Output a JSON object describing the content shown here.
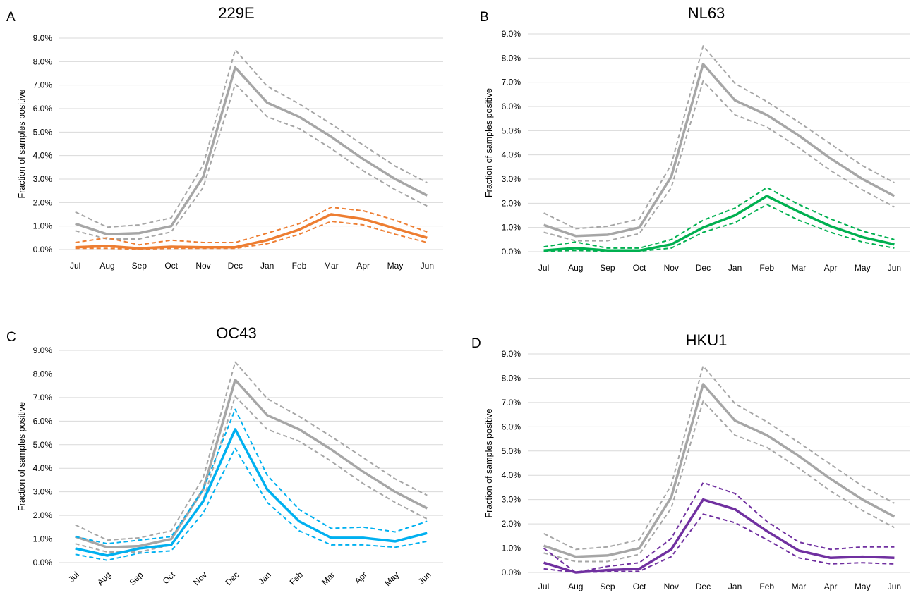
{
  "colors": {
    "overall": "#a6a6a6",
    "229E": "#ed7d31",
    "NL63": "#00b050",
    "OC43": "#00b0f0",
    "HKU1": "#7030a0"
  },
  "chart_data": [
    {
      "panel": "A",
      "type": "line",
      "title": "229E",
      "ylabel": "Fraction of samples positive",
      "xlabel": "",
      "categories": [
        "Jul",
        "Aug",
        "Sep",
        "Oct",
        "Nov",
        "Dec",
        "Jan",
        "Feb",
        "Mar",
        "Apr",
        "May",
        "Jun"
      ],
      "yticks": [
        "0.0%",
        "1.0%",
        "2.0%",
        "3.0%",
        "4.0%",
        "5.0%",
        "6.0%",
        "7.0%",
        "8.0%",
        "9.0%"
      ],
      "ylim": [
        0,
        9
      ],
      "grid": true,
      "xtick_rotated": false,
      "series": [
        {
          "role": "overall",
          "style": "solid",
          "values": [
            1.1,
            0.65,
            0.7,
            1.0,
            3.1,
            7.75,
            6.25,
            5.65,
            4.8,
            3.85,
            3.0,
            2.3
          ]
        },
        {
          "role": "overall-upper",
          "style": "dashed",
          "values": [
            1.6,
            0.95,
            1.05,
            1.35,
            3.6,
            8.5,
            6.95,
            6.2,
            5.35,
            4.45,
            3.55,
            2.85
          ]
        },
        {
          "role": "overall-lower",
          "style": "dashed",
          "values": [
            0.8,
            0.45,
            0.45,
            0.75,
            2.65,
            7.05,
            5.65,
            5.15,
            4.3,
            3.35,
            2.55,
            1.85
          ]
        },
        {
          "role": "virus",
          "style": "solid",
          "values": [
            0.1,
            0.15,
            0.05,
            0.12,
            0.1,
            0.1,
            0.4,
            0.85,
            1.5,
            1.3,
            0.9,
            0.5
          ]
        },
        {
          "role": "virus-upper",
          "style": "dashed",
          "values": [
            0.3,
            0.5,
            0.2,
            0.4,
            0.3,
            0.3,
            0.7,
            1.1,
            1.8,
            1.65,
            1.25,
            0.75
          ]
        },
        {
          "role": "virus-lower",
          "style": "dashed",
          "values": [
            0.05,
            0.05,
            0.02,
            0.05,
            0.05,
            0.05,
            0.25,
            0.65,
            1.2,
            1.05,
            0.65,
            0.3
          ]
        }
      ]
    },
    {
      "panel": "B",
      "type": "line",
      "title": "NL63",
      "ylabel": "Fraction of samples positive",
      "xlabel": "",
      "categories": [
        "Jul",
        "Aug",
        "Sep",
        "Oct",
        "Nov",
        "Dec",
        "Jan",
        "Feb",
        "Mar",
        "Apr",
        "May",
        "Jun"
      ],
      "yticks": [
        "0.0%",
        "1.0%",
        "2.0%",
        "3.0%",
        "4.0%",
        "5.0%",
        "6.0%",
        "7.0%",
        "8.0%",
        "9.0%"
      ],
      "ylim": [
        0,
        9
      ],
      "grid": true,
      "xtick_rotated": false,
      "series": [
        {
          "role": "overall",
          "style": "solid",
          "values": [
            1.1,
            0.65,
            0.7,
            1.0,
            3.1,
            7.75,
            6.25,
            5.65,
            4.8,
            3.85,
            3.0,
            2.3
          ]
        },
        {
          "role": "overall-upper",
          "style": "dashed",
          "values": [
            1.6,
            0.95,
            1.05,
            1.35,
            3.6,
            8.5,
            6.95,
            6.2,
            5.35,
            4.45,
            3.55,
            2.85
          ]
        },
        {
          "role": "overall-lower",
          "style": "dashed",
          "values": [
            0.8,
            0.45,
            0.45,
            0.75,
            2.65,
            7.05,
            5.65,
            5.15,
            4.3,
            3.35,
            2.55,
            1.85
          ]
        },
        {
          "role": "virus",
          "style": "solid",
          "values": [
            0.05,
            0.15,
            0.05,
            0.05,
            0.3,
            1.0,
            1.5,
            2.3,
            1.65,
            1.05,
            0.6,
            0.3
          ]
        },
        {
          "role": "virus-upper",
          "style": "dashed",
          "values": [
            0.2,
            0.4,
            0.15,
            0.15,
            0.5,
            1.3,
            1.8,
            2.65,
            1.95,
            1.35,
            0.85,
            0.5
          ]
        },
        {
          "role": "virus-lower",
          "style": "dashed",
          "values": [
            0.02,
            0.05,
            0.02,
            0.02,
            0.15,
            0.8,
            1.2,
            1.95,
            1.3,
            0.8,
            0.4,
            0.15
          ]
        }
      ]
    },
    {
      "panel": "C",
      "type": "line",
      "title": "OC43",
      "ylabel": "Fraction of samples positive",
      "xlabel": "",
      "categories": [
        "Jul",
        "Aug",
        "Sep",
        "Oct",
        "Nov",
        "Dec",
        "Jan",
        "Feb",
        "Mar",
        "Apr",
        "May",
        "Jun"
      ],
      "yticks": [
        "0.0%",
        "1.0%",
        "2.0%",
        "3.0%",
        "4.0%",
        "5.0%",
        "6.0%",
        "7.0%",
        "8.0%",
        "9.0%"
      ],
      "ylim": [
        0,
        9
      ],
      "grid": true,
      "xtick_rotated": true,
      "series": [
        {
          "role": "overall",
          "style": "solid",
          "values": [
            1.1,
            0.65,
            0.7,
            1.0,
            3.1,
            7.75,
            6.25,
            5.65,
            4.8,
            3.85,
            3.0,
            2.3
          ]
        },
        {
          "role": "overall-upper",
          "style": "dashed",
          "values": [
            1.6,
            0.95,
            1.05,
            1.35,
            3.6,
            8.5,
            6.95,
            6.2,
            5.35,
            4.45,
            3.55,
            2.85
          ]
        },
        {
          "role": "overall-lower",
          "style": "dashed",
          "values": [
            0.8,
            0.45,
            0.45,
            0.75,
            2.65,
            7.05,
            5.65,
            5.15,
            4.3,
            3.35,
            2.55,
            1.85
          ]
        },
        {
          "role": "virus",
          "style": "solid",
          "values": [
            0.6,
            0.3,
            0.6,
            0.75,
            2.6,
            5.65,
            3.1,
            1.75,
            1.05,
            1.05,
            0.9,
            1.25
          ]
        },
        {
          "role": "virus-upper",
          "style": "dashed",
          "values": [
            1.1,
            0.8,
            0.95,
            1.1,
            3.1,
            6.5,
            3.7,
            2.25,
            1.45,
            1.5,
            1.3,
            1.75
          ]
        },
        {
          "role": "virus-lower",
          "style": "dashed",
          "values": [
            0.35,
            0.1,
            0.4,
            0.5,
            2.1,
            4.85,
            2.55,
            1.35,
            0.75,
            0.75,
            0.65,
            0.9
          ]
        }
      ]
    },
    {
      "panel": "D",
      "type": "line",
      "title": "HKU1",
      "ylabel": "Fraction of samples positive",
      "xlabel": "",
      "categories": [
        "Jul",
        "Aug",
        "Sep",
        "Oct",
        "Nov",
        "Dec",
        "Jan",
        "Feb",
        "Mar",
        "Apr",
        "May",
        "Jun"
      ],
      "yticks": [
        "0.0%",
        "1.0%",
        "2.0%",
        "3.0%",
        "4.0%",
        "5.0%",
        "6.0%",
        "7.0%",
        "8.0%",
        "9.0%"
      ],
      "ylim": [
        0,
        9
      ],
      "grid": true,
      "xtick_rotated": false,
      "series": [
        {
          "role": "overall",
          "style": "solid",
          "values": [
            1.1,
            0.65,
            0.7,
            1.0,
            3.1,
            7.75,
            6.25,
            5.65,
            4.8,
            3.85,
            3.0,
            2.3
          ]
        },
        {
          "role": "overall-upper",
          "style": "dashed",
          "values": [
            1.6,
            0.95,
            1.05,
            1.35,
            3.6,
            8.5,
            6.95,
            6.2,
            5.35,
            4.45,
            3.55,
            2.85
          ]
        },
        {
          "role": "overall-lower",
          "style": "dashed",
          "values": [
            0.8,
            0.45,
            0.45,
            0.75,
            2.65,
            7.05,
            5.65,
            5.15,
            4.3,
            3.35,
            2.55,
            1.85
          ]
        },
        {
          "role": "virus",
          "style": "solid",
          "values": [
            0.4,
            0.0,
            0.1,
            0.15,
            0.95,
            3.0,
            2.6,
            1.7,
            0.9,
            0.6,
            0.65,
            0.6
          ]
        },
        {
          "role": "virus-upper",
          "style": "dashed",
          "values": [
            1.0,
            0.0,
            0.25,
            0.4,
            1.4,
            3.7,
            3.25,
            2.1,
            1.25,
            0.95,
            1.05,
            1.05
          ]
        },
        {
          "role": "virus-lower",
          "style": "dashed",
          "values": [
            0.15,
            0.0,
            0.03,
            0.05,
            0.65,
            2.4,
            2.05,
            1.35,
            0.6,
            0.35,
            0.4,
            0.35
          ]
        }
      ]
    }
  ]
}
